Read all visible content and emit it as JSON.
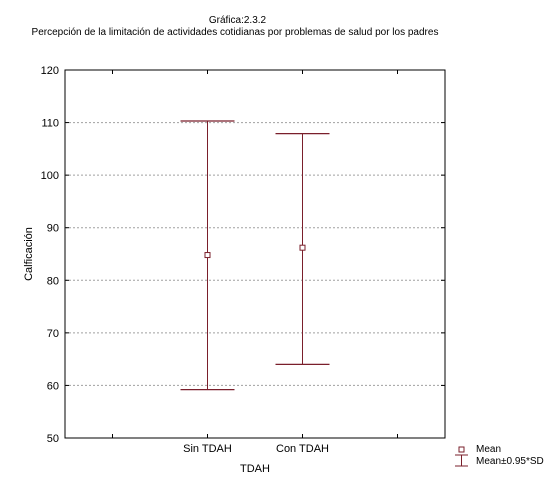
{
  "chart_data": {
    "type": "errorbar",
    "title": "Gráfica:2.3.2",
    "subtitle": "Percepción de la limitación de actividades cotidianas por problemas  de salud por los padres",
    "xlabel": "TDAH",
    "ylabel": "Calficación",
    "categories": [
      "Sin  TDAH",
      "Con TDAH"
    ],
    "mean": [
      84.8,
      86.2
    ],
    "lower": [
      59.2,
      64.0
    ],
    "upper": [
      110.3,
      107.9
    ],
    "ylim": [
      50,
      120
    ],
    "yticks": [
      50,
      60,
      70,
      80,
      90,
      100,
      110,
      120
    ],
    "grid": true,
    "legend": {
      "position": "bottom-right",
      "mean_label": "Mean",
      "sd_label": "Mean±0.95*SD"
    },
    "colors": {
      "series": "#7a1f2b",
      "grid": "#a0a0a0"
    }
  }
}
